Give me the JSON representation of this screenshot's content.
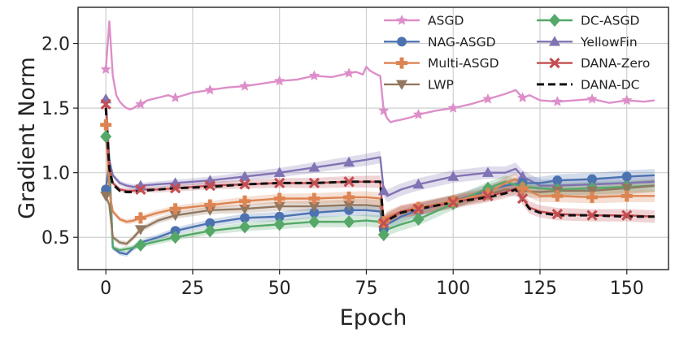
{
  "chart_data": {
    "type": "line",
    "xlabel": "Epoch",
    "ylabel": "Gradient Norm",
    "xlim": [
      -8,
      162
    ],
    "ylim": [
      0.25,
      2.28
    ],
    "xticks": [
      0,
      25,
      50,
      75,
      100,
      125,
      150
    ],
    "yticks": [
      0.5,
      1.0,
      1.5,
      2.0
    ],
    "ytick_labels": [
      "0.5",
      "1.0",
      "1.5",
      "2.0"
    ],
    "grid": true,
    "legend_position": "top-right",
    "series": [
      {
        "name": "ASGD",
        "color": "#dd8ec9",
        "marker": "star",
        "band": false,
        "x": [
          0,
          1,
          2,
          3,
          4,
          5,
          6,
          7,
          8,
          9,
          10,
          12,
          15,
          18,
          20,
          25,
          30,
          35,
          40,
          45,
          50,
          55,
          60,
          65,
          70,
          72,
          74,
          75,
          76,
          78,
          79,
          80,
          81,
          82,
          83,
          85,
          88,
          90,
          95,
          100,
          105,
          110,
          115,
          118,
          120,
          122,
          125,
          130,
          135,
          140,
          145,
          150,
          155,
          158
        ],
        "y": [
          1.8,
          2.17,
          1.75,
          1.6,
          1.55,
          1.52,
          1.5,
          1.49,
          1.5,
          1.52,
          1.53,
          1.56,
          1.58,
          1.6,
          1.58,
          1.62,
          1.64,
          1.66,
          1.67,
          1.69,
          1.71,
          1.72,
          1.75,
          1.74,
          1.77,
          1.78,
          1.76,
          1.82,
          1.79,
          1.76,
          1.75,
          1.48,
          1.42,
          1.39,
          1.4,
          1.41,
          1.43,
          1.45,
          1.48,
          1.5,
          1.53,
          1.57,
          1.61,
          1.64,
          1.58,
          1.6,
          1.56,
          1.55,
          1.56,
          1.57,
          1.54,
          1.56,
          1.55,
          1.56
        ],
        "marker_x": [
          0,
          10,
          20,
          30,
          40,
          50,
          60,
          70,
          80,
          90,
          100,
          110,
          120,
          130,
          140,
          150
        ]
      },
      {
        "name": "NAG-ASGD",
        "color": "#4c72b0",
        "marker": "circle",
        "band": true,
        "x": [
          0,
          1,
          2,
          4,
          6,
          8,
          10,
          15,
          20,
          30,
          40,
          50,
          60,
          70,
          75,
          79,
          80,
          81,
          85,
          90,
          100,
          110,
          115,
          120,
          125,
          130,
          140,
          150,
          158
        ],
        "y": [
          0.87,
          1.1,
          0.42,
          0.38,
          0.37,
          0.42,
          0.46,
          0.5,
          0.55,
          0.61,
          0.65,
          0.66,
          0.69,
          0.71,
          0.71,
          0.7,
          0.56,
          0.6,
          0.66,
          0.71,
          0.78,
          0.86,
          0.9,
          0.92,
          0.92,
          0.94,
          0.95,
          0.97,
          0.98
        ],
        "marker_x": [
          0,
          20,
          30,
          40,
          50,
          60,
          70,
          80,
          90,
          100,
          110,
          120,
          130,
          140,
          150
        ]
      },
      {
        "name": "Multi-ASGD",
        "color": "#dd8452",
        "marker": "plus",
        "band": true,
        "x": [
          0,
          1,
          2,
          4,
          6,
          8,
          10,
          15,
          20,
          30,
          40,
          50,
          60,
          70,
          75,
          79,
          80,
          81,
          85,
          90,
          100,
          110,
          115,
          118,
          120,
          125,
          130,
          140,
          150,
          158
        ],
        "y": [
          1.37,
          0.85,
          0.7,
          0.64,
          0.62,
          0.63,
          0.65,
          0.69,
          0.72,
          0.75,
          0.78,
          0.8,
          0.8,
          0.81,
          0.81,
          0.8,
          0.62,
          0.66,
          0.7,
          0.73,
          0.78,
          0.84,
          0.92,
          0.95,
          0.88,
          0.82,
          0.82,
          0.81,
          0.82,
          0.82
        ],
        "marker_x": [
          0,
          10,
          20,
          30,
          40,
          50,
          60,
          70,
          80,
          90,
          100,
          110,
          120,
          130,
          140,
          150
        ]
      },
      {
        "name": "LWP",
        "color": "#937860",
        "marker": "triangle-down",
        "band": true,
        "x": [
          0,
          1,
          2,
          4,
          6,
          8,
          10,
          15,
          20,
          30,
          40,
          50,
          60,
          70,
          75,
          79,
          80,
          81,
          85,
          90,
          100,
          110,
          115,
          120,
          125,
          130,
          140,
          150,
          158
        ],
        "y": [
          0.82,
          0.75,
          0.5,
          0.46,
          0.45,
          0.5,
          0.56,
          0.63,
          0.67,
          0.71,
          0.72,
          0.74,
          0.74,
          0.75,
          0.75,
          0.74,
          0.6,
          0.64,
          0.69,
          0.72,
          0.78,
          0.83,
          0.87,
          0.86,
          0.85,
          0.86,
          0.86,
          0.88,
          0.9
        ],
        "marker_x": [
          0,
          10,
          20,
          30,
          40,
          50,
          60,
          70,
          80,
          90,
          100,
          110,
          120,
          130,
          140,
          150
        ]
      },
      {
        "name": "DC-ASGD",
        "color": "#55a868",
        "marker": "diamond",
        "band": true,
        "x": [
          0,
          1,
          2,
          4,
          6,
          8,
          10,
          15,
          20,
          30,
          40,
          50,
          60,
          70,
          75,
          79,
          80,
          81,
          85,
          90,
          100,
          110,
          115,
          120,
          125,
          130,
          140,
          150,
          158
        ],
        "y": [
          1.28,
          1.0,
          0.42,
          0.4,
          0.41,
          0.42,
          0.44,
          0.47,
          0.5,
          0.55,
          0.58,
          0.6,
          0.62,
          0.62,
          0.63,
          0.62,
          0.52,
          0.56,
          0.6,
          0.64,
          0.76,
          0.88,
          0.93,
          0.89,
          0.88,
          0.87,
          0.88,
          0.89,
          0.9
        ],
        "marker_x": [
          0,
          10,
          20,
          30,
          40,
          50,
          60,
          70,
          80,
          90,
          100,
          110,
          120,
          130,
          140,
          150
        ]
      },
      {
        "name": "YellowFin",
        "color": "#8172b3",
        "marker": "triangle-up",
        "band": true,
        "x": [
          0,
          1,
          2,
          4,
          6,
          8,
          10,
          15,
          20,
          30,
          40,
          50,
          60,
          70,
          75,
          79,
          80,
          81,
          85,
          90,
          100,
          110,
          115,
          118,
          120,
          125,
          130,
          140,
          150,
          158
        ],
        "y": [
          1.57,
          1.1,
          0.98,
          0.92,
          0.9,
          0.89,
          0.9,
          0.91,
          0.92,
          0.94,
          0.97,
          1.0,
          1.04,
          1.08,
          1.1,
          1.12,
          0.86,
          0.82,
          0.87,
          0.91,
          0.97,
          1.0,
          1.0,
          1.03,
          0.97,
          0.9,
          0.9,
          0.91,
          0.92,
          0.93
        ],
        "marker_x": [
          0,
          10,
          20,
          30,
          40,
          50,
          60,
          70,
          80,
          90,
          100,
          110,
          120,
          130,
          140,
          150
        ]
      },
      {
        "name": "DANA-Zero",
        "color": "#c44e52",
        "marker": "x",
        "band": true,
        "x": [
          0,
          1,
          2,
          4,
          6,
          8,
          10,
          15,
          20,
          30,
          40,
          50,
          60,
          70,
          75,
          79,
          80,
          81,
          85,
          90,
          100,
          110,
          115,
          118,
          120,
          122,
          125,
          130,
          140,
          150,
          158
        ],
        "y": [
          1.53,
          1.05,
          0.92,
          0.87,
          0.86,
          0.86,
          0.87,
          0.87,
          0.88,
          0.9,
          0.91,
          0.92,
          0.92,
          0.93,
          0.93,
          0.93,
          0.61,
          0.64,
          0.7,
          0.72,
          0.77,
          0.82,
          0.85,
          0.88,
          0.8,
          0.73,
          0.7,
          0.68,
          0.67,
          0.67,
          0.66
        ],
        "marker_x": [
          0,
          10,
          20,
          30,
          40,
          50,
          60,
          70,
          80,
          90,
          100,
          110,
          120,
          130,
          140,
          150
        ]
      },
      {
        "name": "DANA-DC",
        "color": "#111111",
        "marker": "none",
        "dashed": true,
        "band": false,
        "x": [
          0,
          1,
          2,
          4,
          6,
          8,
          10,
          15,
          20,
          30,
          40,
          50,
          60,
          70,
          75,
          79,
          80,
          81,
          85,
          90,
          100,
          110,
          115,
          118,
          120,
          122,
          125,
          130,
          140,
          150,
          158
        ],
        "y": [
          1.5,
          1.03,
          0.91,
          0.86,
          0.85,
          0.85,
          0.86,
          0.87,
          0.88,
          0.89,
          0.91,
          0.92,
          0.92,
          0.93,
          0.93,
          0.93,
          0.6,
          0.63,
          0.69,
          0.72,
          0.77,
          0.81,
          0.84,
          0.87,
          0.79,
          0.72,
          0.69,
          0.67,
          0.67,
          0.66,
          0.66
        ],
        "marker_x": []
      }
    ]
  }
}
